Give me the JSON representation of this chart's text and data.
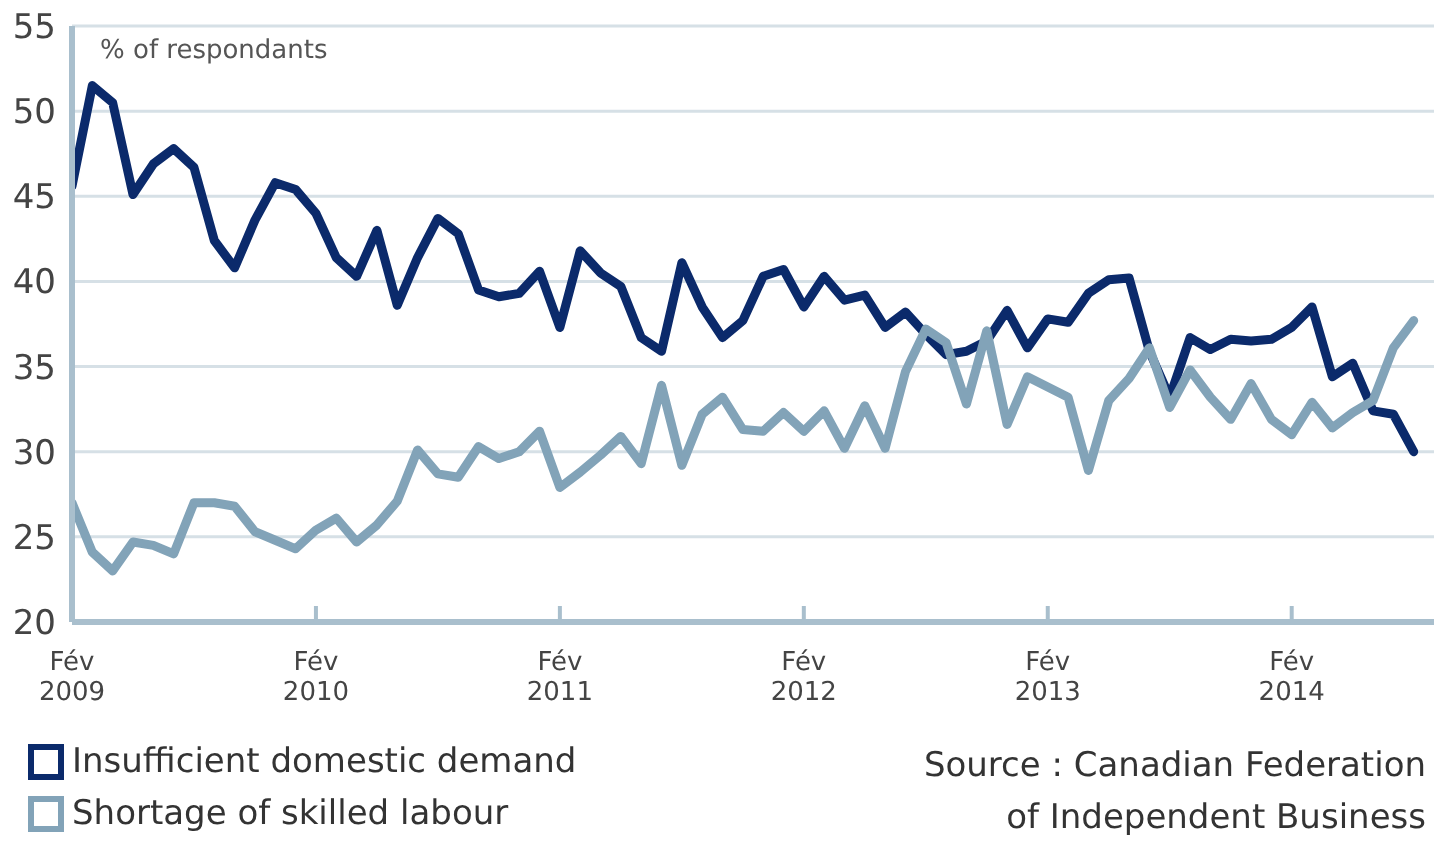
{
  "chart_data": {
    "type": "line",
    "ylabel": "% of respondants",
    "x": [
      "2009-02",
      "2009-03",
      "2009-04",
      "2009-05",
      "2009-06",
      "2009-07",
      "2009-08",
      "2009-09",
      "2009-10",
      "2009-11",
      "2009-12",
      "2010-01",
      "2010-02",
      "2010-03",
      "2010-04",
      "2010-05",
      "2010-06",
      "2010-07",
      "2010-08",
      "2010-09",
      "2010-10",
      "2010-11",
      "2010-12",
      "2011-01",
      "2011-02",
      "2011-03",
      "2011-04",
      "2011-05",
      "2011-06",
      "2011-07",
      "2011-08",
      "2011-09",
      "2011-10",
      "2011-11",
      "2011-12",
      "2012-01",
      "2012-02",
      "2012-03",
      "2012-04",
      "2012-05",
      "2012-06",
      "2012-07",
      "2012-08",
      "2012-09",
      "2012-10",
      "2012-11",
      "2012-12",
      "2013-01",
      "2013-02",
      "2013-03",
      "2013-04",
      "2013-05",
      "2013-06",
      "2013-07",
      "2013-08",
      "2013-09",
      "2013-10",
      "2013-11",
      "2013-12",
      "2014-01",
      "2014-02",
      "2014-03",
      "2014-04",
      "2014-05",
      "2014-06",
      "2014-07",
      "2014-08"
    ],
    "series": [
      {
        "name": "Insufficient domestic demand",
        "color": "#0b2a6b",
        "values": [
          45.6,
          51.5,
          50.5,
          45.1,
          46.9,
          47.8,
          46.7,
          42.4,
          40.8,
          43.6,
          45.8,
          45.4,
          44.0,
          41.4,
          40.3,
          43.0,
          38.6,
          41.4,
          43.7,
          42.8,
          39.5,
          39.1,
          39.3,
          40.6,
          37.3,
          41.8,
          40.5,
          39.7,
          36.7,
          35.9,
          41.1,
          38.5,
          36.7,
          37.7,
          40.3,
          40.7,
          38.5,
          40.3,
          38.9,
          39.2,
          37.3,
          38.2,
          36.9,
          35.7,
          35.9,
          36.5,
          38.3,
          36.1,
          37.8,
          37.6,
          39.3,
          40.1,
          40.2,
          35.9,
          33.2,
          36.7,
          36.0,
          36.6,
          36.5,
          36.6,
          37.3,
          38.5,
          34.4,
          35.2,
          32.4,
          32.2,
          30.0
        ]
      },
      {
        "name": "Shortage of skilled labour",
        "color": "#82a3b8",
        "values": [
          27.0,
          24.1,
          23.0,
          24.7,
          24.5,
          24.0,
          27.0,
          27.0,
          26.8,
          25.3,
          24.8,
          24.3,
          25.4,
          26.1,
          24.7,
          25.7,
          27.1,
          30.1,
          28.7,
          28.5,
          30.3,
          29.6,
          30.0,
          31.2,
          27.9,
          28.8,
          29.8,
          30.9,
          29.3,
          33.9,
          29.2,
          32.2,
          33.2,
          31.3,
          31.2,
          32.3,
          31.2,
          32.4,
          30.2,
          32.7,
          30.2,
          34.7,
          37.2,
          36.4,
          32.8,
          37.1,
          31.6,
          34.4,
          33.8,
          33.2,
          28.9,
          33.0,
          34.3,
          36.1,
          32.6,
          34.8,
          33.2,
          31.9,
          34.0,
          31.9,
          31.0,
          32.9,
          31.4,
          32.3,
          33.0,
          36.1,
          37.7
        ]
      }
    ],
    "xlim": [
      "2009-02",
      "2014-09"
    ],
    "xticks": [
      {
        "value": "2009-02",
        "label": "Fév 2009"
      },
      {
        "value": "2010-02",
        "label": "Fév 2010"
      },
      {
        "value": "2011-02",
        "label": "Fév 2011"
      },
      {
        "value": "2012-02",
        "label": "Fév 2012"
      },
      {
        "value": "2013-02",
        "label": "Fév 2013"
      },
      {
        "value": "2014-02",
        "label": "Fév 2014"
      }
    ],
    "ylim": [
      20,
      55
    ],
    "yticks": [
      20,
      25,
      30,
      35,
      40,
      45,
      50,
      55
    ],
    "grid": "y",
    "legend": "bottom left",
    "marker": "none",
    "line_style": "solid",
    "annotations": [
      "Source : Canadian Federation of Independent Business"
    ]
  }
}
